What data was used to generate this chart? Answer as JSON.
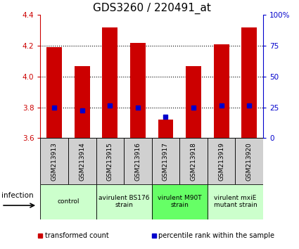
{
  "title": "GDS3260 / 220491_at",
  "samples": [
    "GSM213913",
    "GSM213914",
    "GSM213915",
    "GSM213916",
    "GSM213917",
    "GSM213918",
    "GSM213919",
    "GSM213920"
  ],
  "red_values": [
    4.19,
    4.07,
    4.32,
    4.22,
    3.72,
    4.07,
    4.21,
    4.32
  ],
  "blue_values": [
    3.8,
    3.78,
    3.81,
    3.8,
    3.74,
    3.8,
    3.81,
    3.81
  ],
  "ylim_left": [
    3.6,
    4.4
  ],
  "ylim_right": [
    0,
    100
  ],
  "yticks_left": [
    3.6,
    3.8,
    4.0,
    4.2,
    4.4
  ],
  "yticks_right": [
    0,
    25,
    50,
    75,
    100
  ],
  "ytick_labels_right": [
    "0",
    "25",
    "50",
    "75",
    "100%"
  ],
  "dotted_yticks": [
    3.8,
    4.0,
    4.2
  ],
  "bar_color": "#cc0000",
  "dot_color": "#0000cc",
  "bar_width": 0.55,
  "bar_bottom": 3.6,
  "groups": [
    {
      "label": "control",
      "indices": [
        0,
        1
      ],
      "color": "#ccffcc"
    },
    {
      "label": "avirulent BS176\nstrain",
      "indices": [
        2,
        3
      ],
      "color": "#ccffcc"
    },
    {
      "label": "virulent M90T\nstrain",
      "indices": [
        4,
        5
      ],
      "color": "#66ff66"
    },
    {
      "label": "virulent mxiE\nmutant strain",
      "indices": [
        6,
        7
      ],
      "color": "#ccffcc"
    }
  ],
  "infection_label": "infection",
  "legend_items": [
    {
      "color": "#cc0000",
      "label": "transformed count"
    },
    {
      "color": "#0000cc",
      "label": "percentile rank within the sample"
    }
  ],
  "title_fontsize": 11,
  "tick_fontsize": 7.5,
  "sample_fontsize": 6.5,
  "group_label_fontsize": 6.5,
  "legend_fontsize": 7,
  "left_color": "#cc0000",
  "right_color": "#0000cc",
  "sample_box_color": "#d0d0d0",
  "spine_color": "black"
}
